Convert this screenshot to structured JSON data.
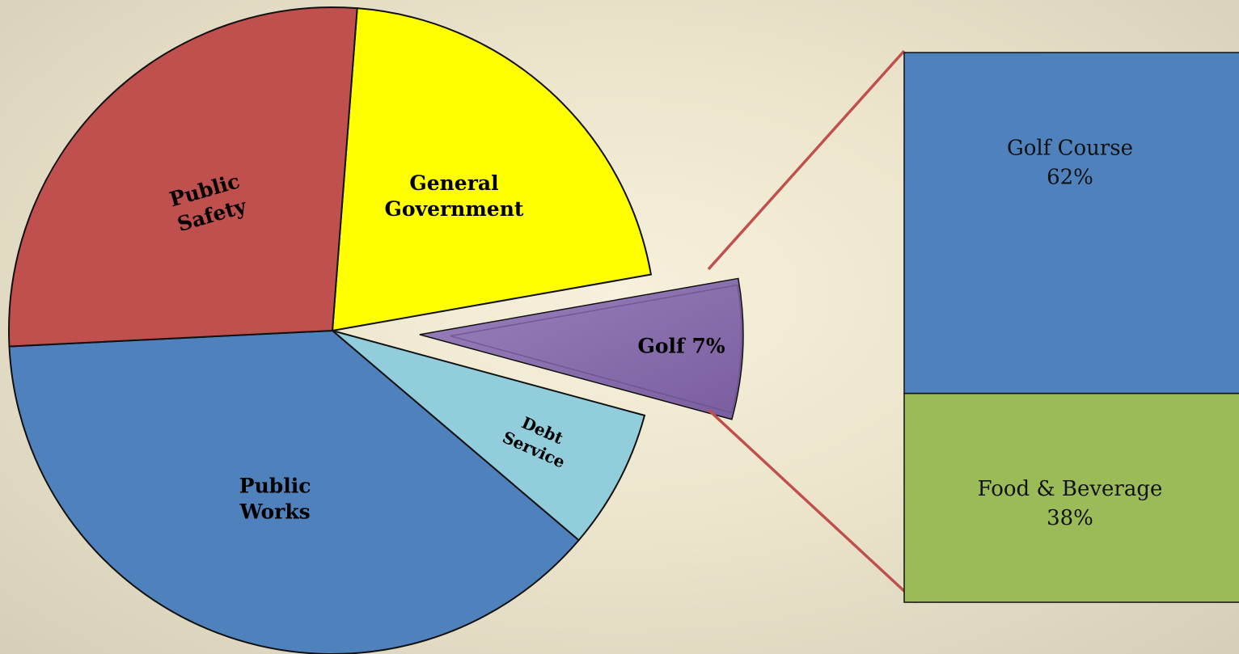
{
  "chart_data": [
    {
      "type": "pie",
      "slices": [
        {
          "label": "General Government",
          "value": 21,
          "color": "#ffff00"
        },
        {
          "label": "Golf",
          "display_label": "Golf 7%",
          "value": 7,
          "color": "#8064a2",
          "exploded": true
        },
        {
          "label": "Debt Service",
          "value": 7,
          "color": "#92cddc"
        },
        {
          "label": "Public Works",
          "value": 38,
          "color": "#4f81bd"
        },
        {
          "label": "Public Safety",
          "value": 27,
          "color": "#c0504d"
        }
      ]
    },
    {
      "type": "bar",
      "stacked": true,
      "categories": [
        "Golf"
      ],
      "series": [
        {
          "name": "Food & Beverage",
          "label": "Food & Beverage",
          "value_label": "38%",
          "value": 38,
          "color": "#9bbb59"
        },
        {
          "name": "Golf Course",
          "label": "Golf Course",
          "value_label": "62%",
          "value": 62,
          "color": "#4f81bd"
        }
      ],
      "ylim": [
        0,
        100
      ]
    }
  ],
  "connector_color": "#c0504d"
}
